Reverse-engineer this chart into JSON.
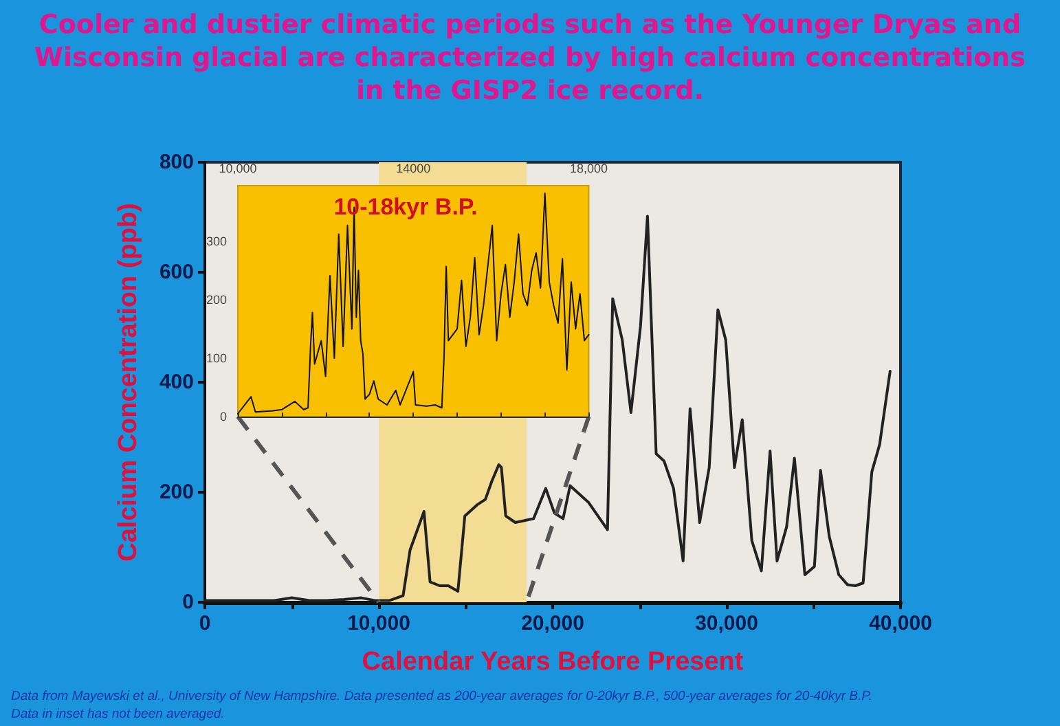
{
  "chart_data": [
    {
      "type": "line",
      "title": "Cooler and dustier climatic periods such as the Younger Dryas and Wisconsin glacial are characterized by high calcium concentrations in the GISP2 ice record.",
      "xlabel": "Calendar Years Before Present",
      "ylabel": "Calcium Concentration (ppb)",
      "annotations": [
        "Data from Mayewski et al., University of New Hampshire.  Data presented as 200-year averages for 0-20kyr B.P., 500-year averages for 20-40kyr B.P.",
        "Data in inset has not been averaged."
      ],
      "x": [
        0,
        2000,
        4000,
        5000,
        6000,
        7000,
        8000,
        9000,
        9800,
        10600,
        11400,
        11800,
        12600,
        12950,
        13500,
        14000,
        14550,
        14950,
        15650,
        16130,
        16500,
        16900,
        17050,
        17300,
        17850,
        18900,
        19600,
        20100,
        20600,
        21000,
        22050,
        23150,
        23450,
        24000,
        24500,
        25050,
        25450,
        25950,
        26400,
        26950,
        27500,
        27900,
        28450,
        29000,
        29500,
        29950,
        30450,
        30900,
        31450,
        32000,
        32500,
        32900,
        33450,
        33900,
        34500,
        35050,
        35400,
        35900,
        36450,
        36950,
        37400,
        37850,
        38350,
        38800,
        39400
      ],
      "values": [
        3,
        3,
        3,
        8,
        3,
        3,
        5,
        8,
        3,
        3,
        12,
        95,
        165,
        37,
        30,
        30,
        20,
        157,
        177,
        187,
        220,
        250,
        245,
        157,
        145,
        152,
        207,
        162,
        152,
        212,
        182,
        132,
        552,
        477,
        345,
        502,
        702,
        270,
        257,
        207,
        75,
        352,
        145,
        245,
        532,
        477,
        245,
        332,
        112,
        57,
        275,
        75,
        137,
        262,
        50,
        65,
        240,
        120,
        50,
        32,
        30,
        35,
        237,
        287,
        420
      ],
      "color": "#222222",
      "marker": "none",
      "line_style": "solid",
      "grid": false,
      "xlim": [
        0,
        40000
      ],
      "xticks": [
        0,
        {
          "value": 5000,
          "label": null
        },
        {
          "value": 10000,
          "label": "10,000"
        },
        {
          "value": 15000,
          "label": null
        },
        {
          "value": 20000,
          "label": "20,000"
        },
        {
          "value": 25000,
          "label": null
        },
        {
          "value": 30000,
          "label": "30,000"
        },
        {
          "value": 35000,
          "label": null
        },
        {
          "value": 40000,
          "label": "40,000"
        }
      ],
      "ylim": [
        0,
        800
      ],
      "yticks": [
        0,
        200,
        400,
        600,
        800
      ],
      "bands": [
        {
          "axis": "x",
          "from": 10000,
          "to": 18500,
          "color": "#f3dc94"
        }
      ]
    },
    {
      "type": "line",
      "title": "10-18kyr B.P.",
      "x": [
        10000,
        10300,
        10400,
        10800,
        11000,
        11300,
        11500,
        11600,
        11660,
        11700,
        11750,
        11900,
        12000,
        12100,
        12200,
        12300,
        12400,
        12500,
        12600,
        12650,
        12700,
        12750,
        12800,
        12850,
        12900,
        13000,
        13100,
        13200,
        13400,
        13600,
        13700,
        14000,
        14050,
        14300,
        14500,
        14650,
        14700,
        14750,
        14800,
        15000,
        15100,
        15200,
        15300,
        15400,
        15500,
        15600,
        15800,
        15900,
        16000,
        16100,
        16200,
        16300,
        16400,
        16500,
        16600,
        16700,
        16800,
        16900,
        17000,
        17100,
        17200,
        17300,
        17400,
        17500,
        17600,
        17700,
        17800,
        17900,
        18000
      ],
      "values": [
        5,
        34,
        8,
        10,
        12,
        26,
        12,
        15,
        124,
        178,
        90,
        130,
        69,
        241,
        100,
        312,
        120,
        327,
        150,
        358,
        170,
        250,
        130,
        108,
        30,
        38,
        61,
        30,
        20,
        45,
        20,
        77,
        20,
        18,
        20,
        15,
        100,
        257,
        130,
        150,
        233,
        120,
        170,
        272,
        140,
        190,
        327,
        130,
        210,
        260,
        170,
        230,
        312,
        210,
        190,
        250,
        280,
        220,
        382,
        230,
        190,
        160,
        270,
        80,
        230,
        150,
        210,
        130,
        140
      ],
      "color": "#111111",
      "marker": "none",
      "line_style": "solid",
      "grid": false,
      "xlim": [
        10000,
        18000
      ],
      "xticks": [
        {
          "value": 10000,
          "label": "10,000"
        },
        {
          "value": 11000,
          "label": null
        },
        {
          "value": 12000,
          "label": null
        },
        {
          "value": 13000,
          "label": null
        },
        {
          "value": 14000,
          "label": "14000"
        },
        {
          "value": 15000,
          "label": null
        },
        {
          "value": 16000,
          "label": null
        },
        {
          "value": 17000,
          "label": null
        },
        {
          "value": 18000,
          "label": "18,000"
        }
      ],
      "ylim": [
        0,
        395
      ],
      "yticks": [
        0,
        100,
        200,
        300
      ]
    }
  ]
}
